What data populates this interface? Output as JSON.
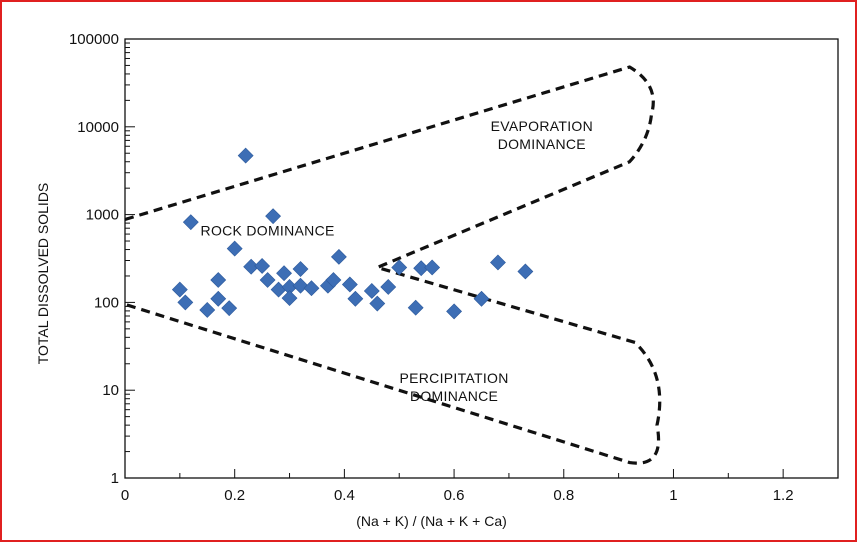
{
  "chart_data": {
    "type": "scatter",
    "xlabel": "(Na + K) / (Na + K + Ca)",
    "ylabel": "TOTAL DISSOLVED SOLIDS",
    "xlim": [
      0,
      1.3
    ],
    "ylim": [
      1,
      100000
    ],
    "yscale": "log",
    "x_ticks": [
      0,
      0.2,
      0.4,
      0.6,
      0.8,
      1,
      1.2
    ],
    "x_tick_labels": [
      "0",
      "0.2",
      "0.4",
      "0.6",
      "0.8",
      "1",
      "1.2"
    ],
    "y_ticks": [
      1,
      10,
      100,
      1000,
      10000,
      100000
    ],
    "y_tick_labels": [
      "1",
      "10",
      "100",
      "1000",
      "10000",
      "100000"
    ],
    "grid": false,
    "marker": "diamond",
    "marker_color": "#3d6eb5",
    "points": [
      {
        "x": 0.1,
        "y": 140
      },
      {
        "x": 0.11,
        "y": 100
      },
      {
        "x": 0.12,
        "y": 820
      },
      {
        "x": 0.15,
        "y": 82
      },
      {
        "x": 0.17,
        "y": 180
      },
      {
        "x": 0.17,
        "y": 110
      },
      {
        "x": 0.19,
        "y": 86
      },
      {
        "x": 0.2,
        "y": 410
      },
      {
        "x": 0.22,
        "y": 4700
      },
      {
        "x": 0.23,
        "y": 255
      },
      {
        "x": 0.25,
        "y": 260
      },
      {
        "x": 0.26,
        "y": 180
      },
      {
        "x": 0.27,
        "y": 960
      },
      {
        "x": 0.28,
        "y": 140
      },
      {
        "x": 0.29,
        "y": 215
      },
      {
        "x": 0.3,
        "y": 150
      },
      {
        "x": 0.3,
        "y": 112
      },
      {
        "x": 0.32,
        "y": 240
      },
      {
        "x": 0.32,
        "y": 155
      },
      {
        "x": 0.34,
        "y": 145
      },
      {
        "x": 0.37,
        "y": 155
      },
      {
        "x": 0.38,
        "y": 180
      },
      {
        "x": 0.39,
        "y": 330
      },
      {
        "x": 0.41,
        "y": 160
      },
      {
        "x": 0.42,
        "y": 110
      },
      {
        "x": 0.45,
        "y": 135
      },
      {
        "x": 0.46,
        "y": 97
      },
      {
        "x": 0.48,
        "y": 150
      },
      {
        "x": 0.5,
        "y": 250
      },
      {
        "x": 0.53,
        "y": 87
      },
      {
        "x": 0.54,
        "y": 245
      },
      {
        "x": 0.56,
        "y": 250
      },
      {
        "x": 0.6,
        "y": 79
      },
      {
        "x": 0.65,
        "y": 110
      },
      {
        "x": 0.68,
        "y": 285
      },
      {
        "x": 0.73,
        "y": 225
      }
    ],
    "boomerang_outline": [
      {
        "x": 0,
        "y": 880
      },
      {
        "x": 0.92,
        "y": 48000
      },
      {
        "x": 0.96,
        "y": 14000
      },
      {
        "x": 0.92,
        "y": 4000
      },
      {
        "x": 0.46,
        "y": 250
      },
      {
        "x": 0.93,
        "y": 35
      },
      {
        "x": 0.97,
        "y": 4
      },
      {
        "x": 0.92,
        "y": 1.5
      },
      {
        "x": 0,
        "y": 95
      }
    ],
    "annotations": [
      {
        "text_lines": [
          "EVAPORATION",
          "DOMINANCE"
        ],
        "x": 0.76,
        "y": 9000
      },
      {
        "text_lines": [
          "ROCK DOMINANCE"
        ],
        "x": 0.26,
        "y": 580
      },
      {
        "text_lines": [
          "PERCIPITATION",
          "DOMINANCE"
        ],
        "x": 0.6,
        "y": 12
      }
    ]
  }
}
